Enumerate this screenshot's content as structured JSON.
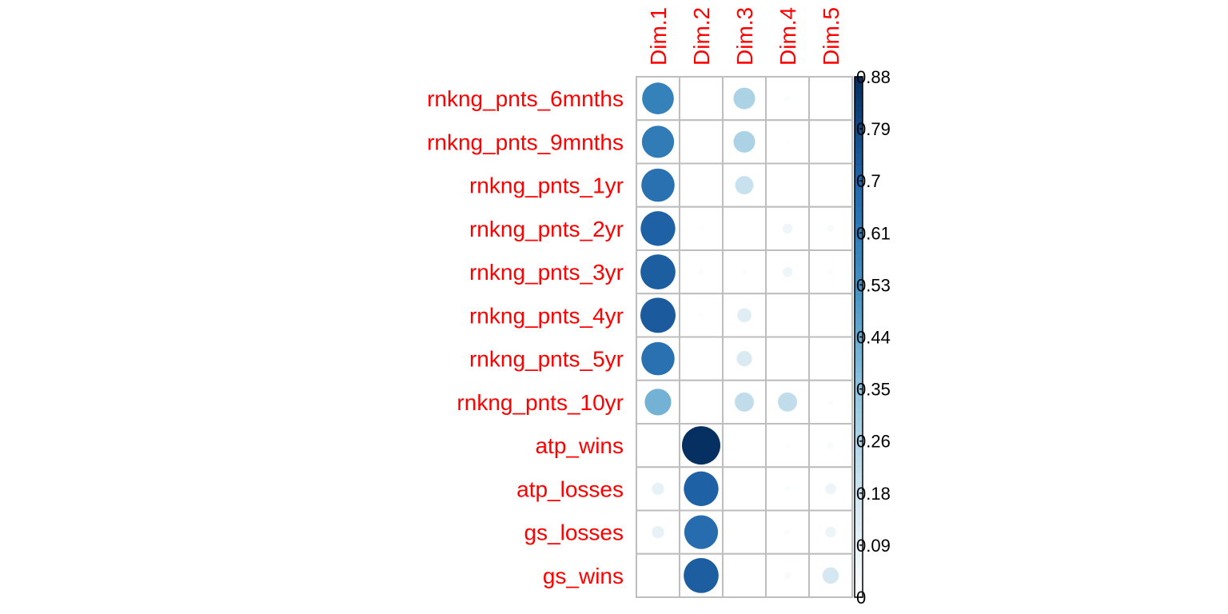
{
  "chart_data": {
    "type": "heatmap",
    "title": "",
    "columns": [
      "Dim.1",
      "Dim.2",
      "Dim.3",
      "Dim.4",
      "Dim.5"
    ],
    "rows": [
      "rnkng_pnts_6mnths",
      "rnkng_pnts_9mnths",
      "rnkng_pnts_1yr",
      "rnkng_pnts_2yr",
      "rnkng_pnts_3yr",
      "rnkng_pnts_4yr",
      "rnkng_pnts_5yr",
      "rnkng_pnts_10yr",
      "atp_wins",
      "atp_losses",
      "gs_losses",
      "gs_wins"
    ],
    "values": [
      [
        0.6,
        0.0,
        0.28,
        0.02,
        0.0
      ],
      [
        0.62,
        0.0,
        0.28,
        0.01,
        0.0
      ],
      [
        0.66,
        0.0,
        0.2,
        0.0,
        0.0
      ],
      [
        0.72,
        0.01,
        0.0,
        0.06,
        0.03
      ],
      [
        0.73,
        0.02,
        0.02,
        0.06,
        0.02
      ],
      [
        0.74,
        0.01,
        0.12,
        0.0,
        0.0
      ],
      [
        0.66,
        0.01,
        0.14,
        0.0,
        0.0
      ],
      [
        0.42,
        0.0,
        0.22,
        0.22,
        0.02
      ],
      [
        0.0,
        0.88,
        0.0,
        0.01,
        0.03
      ],
      [
        0.09,
        0.72,
        0.0,
        0.02,
        0.07
      ],
      [
        0.09,
        0.68,
        0.0,
        0.02,
        0.07
      ],
      [
        0.0,
        0.73,
        0.0,
        0.03,
        0.16
      ]
    ],
    "color_scale": {
      "min": 0,
      "max": 0.88,
      "ticks": [
        "0.88",
        "0.79",
        "0.7",
        "0.61",
        "0.53",
        "0.44",
        "0.35",
        "0.26",
        "0.18",
        "0.09",
        "0"
      ],
      "low_color": "#FFFFFF",
      "high_color": "#053061"
    },
    "label_color": "#FF0000",
    "grid_color": "#BEBEBE"
  }
}
